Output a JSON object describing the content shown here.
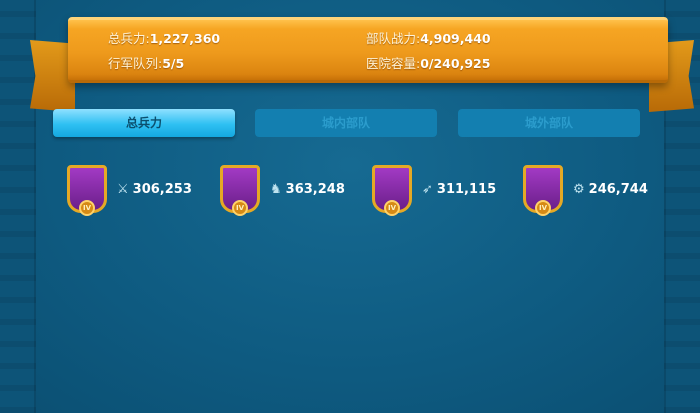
{
  "summary": {
    "total_troops_label": "总兵力:",
    "total_troops": "1,227,360",
    "power_label": "部队战力:",
    "power": "4,909,440",
    "marches_label": "行军队列:",
    "marches": "5/5",
    "hospital_label": "医院容量:",
    "hospital": "0/240,925"
  },
  "tabs": [
    {
      "label": "总兵力",
      "active": true
    },
    {
      "label": "城内部队",
      "active": false
    },
    {
      "label": "城外部队",
      "active": false
    }
  ],
  "units": [
    {
      "type": "infantry",
      "icon": "sword-icon",
      "glyph": "⚔",
      "tier": "IV",
      "count": "306,253"
    },
    {
      "type": "cavalry",
      "icon": "horse-icon",
      "glyph": "♞",
      "tier": "IV",
      "count": "363,248"
    },
    {
      "type": "archer",
      "icon": "bow-icon",
      "glyph": "➶",
      "tier": "IV",
      "count": "311,115"
    },
    {
      "type": "siege",
      "icon": "catapult-icon",
      "glyph": "⚙",
      "tier": "IV",
      "count": "246,744"
    }
  ],
  "colors": {
    "background": "#0f5d85",
    "banner": "#ee9a1c",
    "tab_active": "#2ec0f2",
    "tab_inactive": "#137fb0"
  }
}
